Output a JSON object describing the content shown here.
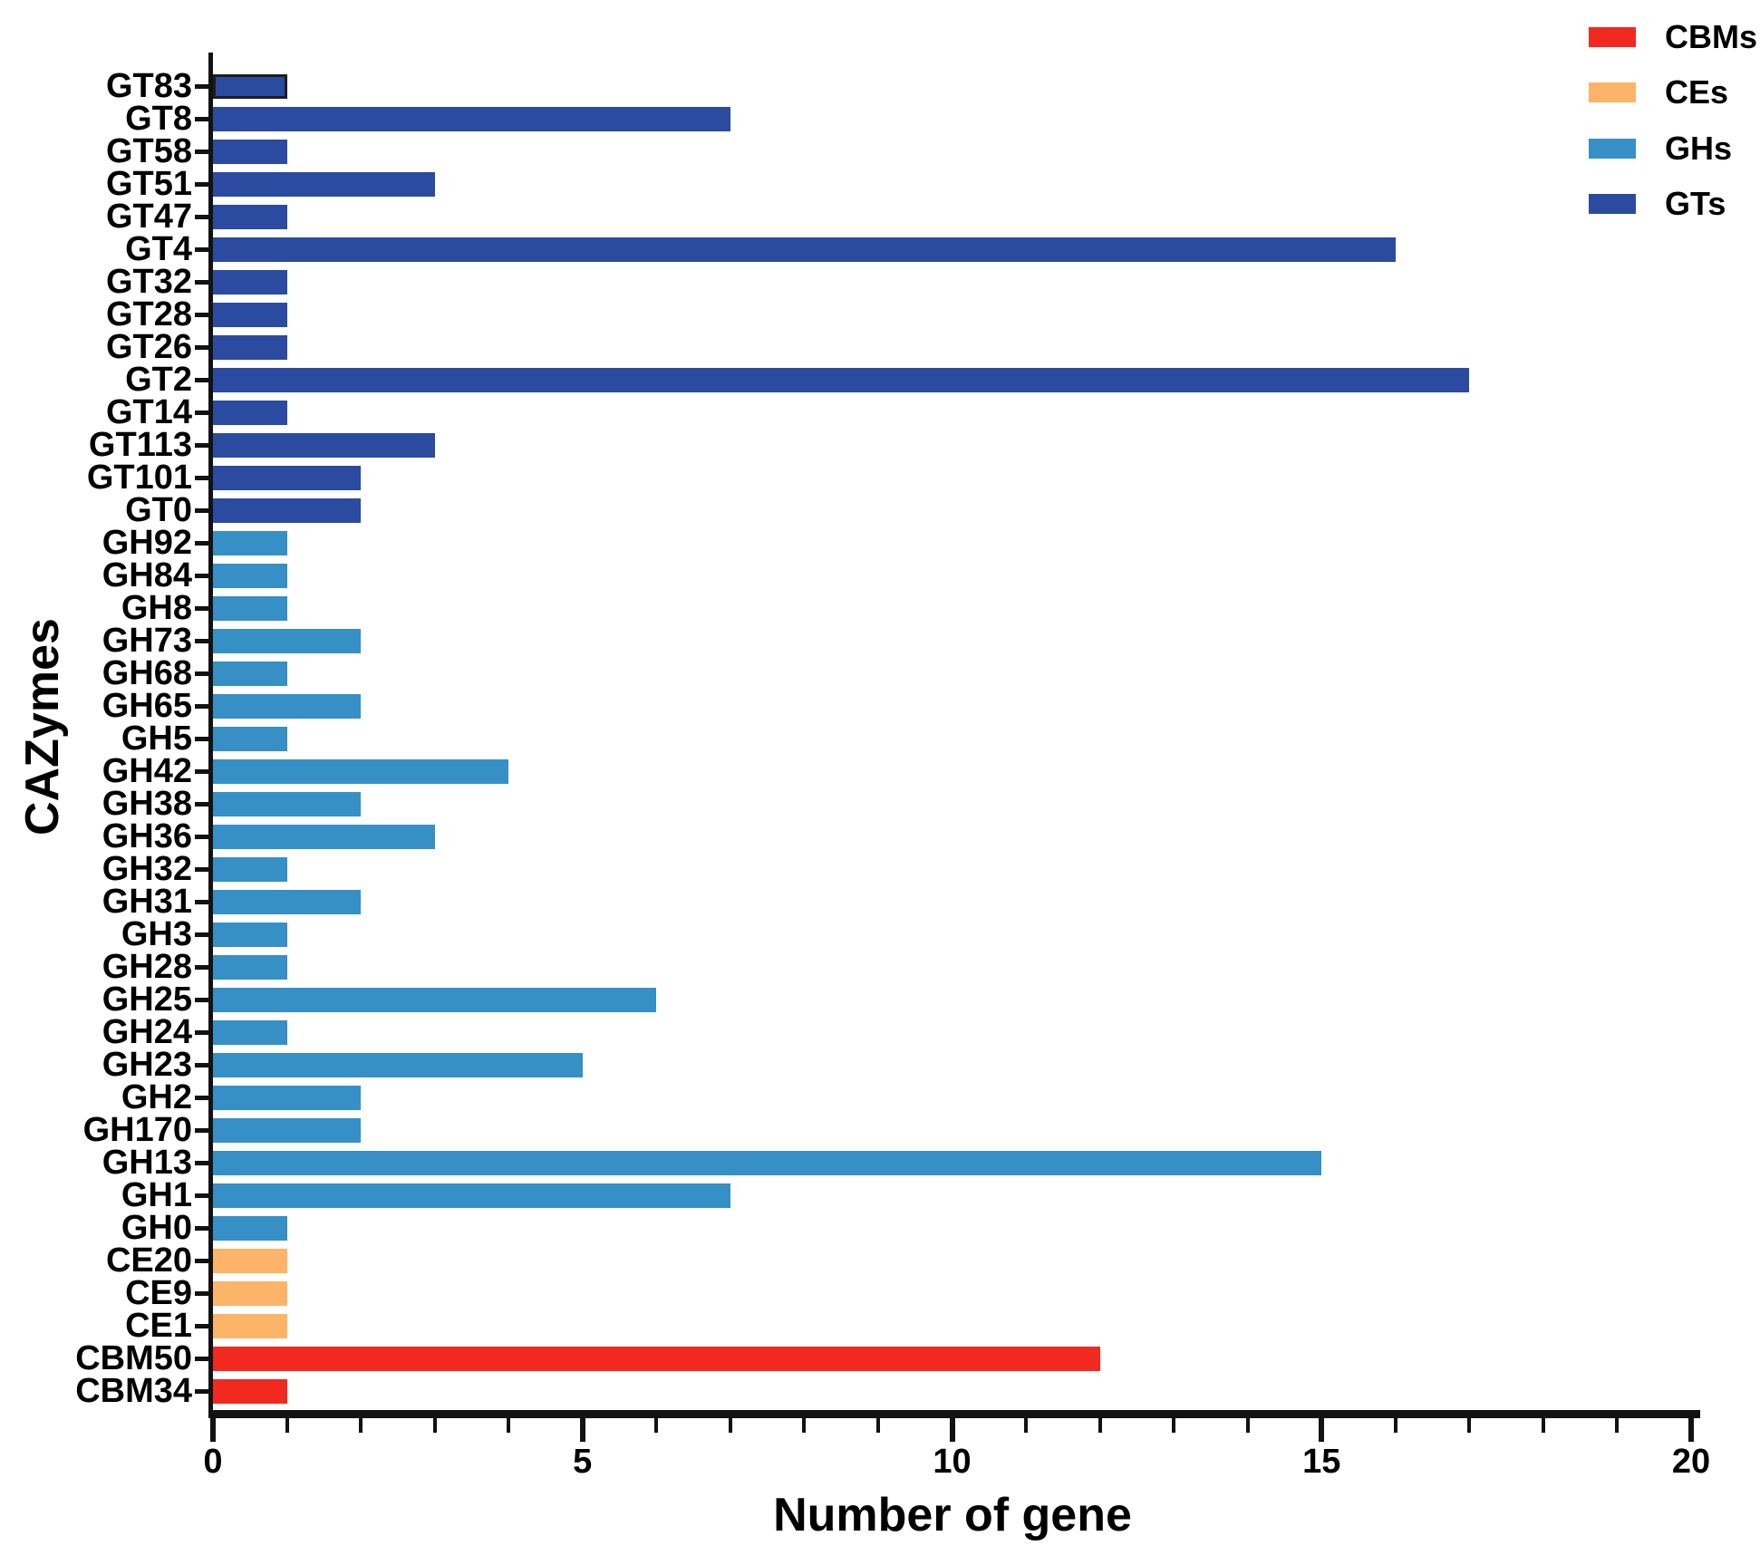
{
  "chart_data": {
    "type": "bar",
    "orientation": "horizontal",
    "xlabel": "Number of gene",
    "ylabel": "CAZymes",
    "xlim": [
      0,
      20
    ],
    "x_major_ticks": [
      0,
      5,
      10,
      15,
      20
    ],
    "x_minor_tick_step": 1,
    "grid": false,
    "legend_position": "top-right",
    "legend": [
      {
        "label": "CBMs",
        "color": "#F2291F"
      },
      {
        "label": "CEs",
        "color": "#FCB468"
      },
      {
        "label": "GHs",
        "color": "#3690C6"
      },
      {
        "label": "GTs",
        "color": "#2A4B9F"
      }
    ],
    "bars": [
      {
        "label": "GT83",
        "value": 1,
        "group": "GTs",
        "outlined": true
      },
      {
        "label": "GT8",
        "value": 7,
        "group": "GTs"
      },
      {
        "label": "GT58",
        "value": 1,
        "group": "GTs"
      },
      {
        "label": "GT51",
        "value": 3,
        "group": "GTs"
      },
      {
        "label": "GT47",
        "value": 1,
        "group": "GTs"
      },
      {
        "label": "GT4",
        "value": 16,
        "group": "GTs"
      },
      {
        "label": "GT32",
        "value": 1,
        "group": "GTs"
      },
      {
        "label": "GT28",
        "value": 1,
        "group": "GTs"
      },
      {
        "label": "GT26",
        "value": 1,
        "group": "GTs"
      },
      {
        "label": "GT2",
        "value": 17,
        "group": "GTs"
      },
      {
        "label": "GT14",
        "value": 1,
        "group": "GTs"
      },
      {
        "label": "GT113",
        "value": 3,
        "group": "GTs"
      },
      {
        "label": "GT101",
        "value": 2,
        "group": "GTs"
      },
      {
        "label": "GT0",
        "value": 2,
        "group": "GTs"
      },
      {
        "label": "GH92",
        "value": 1,
        "group": "GHs"
      },
      {
        "label": "GH84",
        "value": 1,
        "group": "GHs"
      },
      {
        "label": "GH8",
        "value": 1,
        "group": "GHs"
      },
      {
        "label": "GH73",
        "value": 2,
        "group": "GHs"
      },
      {
        "label": "GH68",
        "value": 1,
        "group": "GHs"
      },
      {
        "label": "GH65",
        "value": 2,
        "group": "GHs"
      },
      {
        "label": "GH5",
        "value": 1,
        "group": "GHs"
      },
      {
        "label": "GH42",
        "value": 4,
        "group": "GHs"
      },
      {
        "label": "GH38",
        "value": 2,
        "group": "GHs"
      },
      {
        "label": "GH36",
        "value": 3,
        "group": "GHs"
      },
      {
        "label": "GH32",
        "value": 1,
        "group": "GHs"
      },
      {
        "label": "GH31",
        "value": 2,
        "group": "GHs"
      },
      {
        "label": "GH3",
        "value": 1,
        "group": "GHs"
      },
      {
        "label": "GH28",
        "value": 1,
        "group": "GHs"
      },
      {
        "label": "GH25",
        "value": 6,
        "group": "GHs"
      },
      {
        "label": "GH24",
        "value": 1,
        "group": "GHs"
      },
      {
        "label": "GH23",
        "value": 5,
        "group": "GHs"
      },
      {
        "label": "GH2",
        "value": 2,
        "group": "GHs"
      },
      {
        "label": "GH170",
        "value": 2,
        "group": "GHs"
      },
      {
        "label": "GH13",
        "value": 15,
        "group": "GHs"
      },
      {
        "label": "GH1",
        "value": 7,
        "group": "GHs"
      },
      {
        "label": "GH0",
        "value": 1,
        "group": "GHs"
      },
      {
        "label": "CE20",
        "value": 1,
        "group": "CEs"
      },
      {
        "label": "CE9",
        "value": 1,
        "group": "CEs"
      },
      {
        "label": "CE1",
        "value": 1,
        "group": "CEs"
      },
      {
        "label": "CBM50",
        "value": 12,
        "group": "CBMs"
      },
      {
        "label": "CBM34",
        "value": 1,
        "group": "CBMs"
      }
    ]
  }
}
